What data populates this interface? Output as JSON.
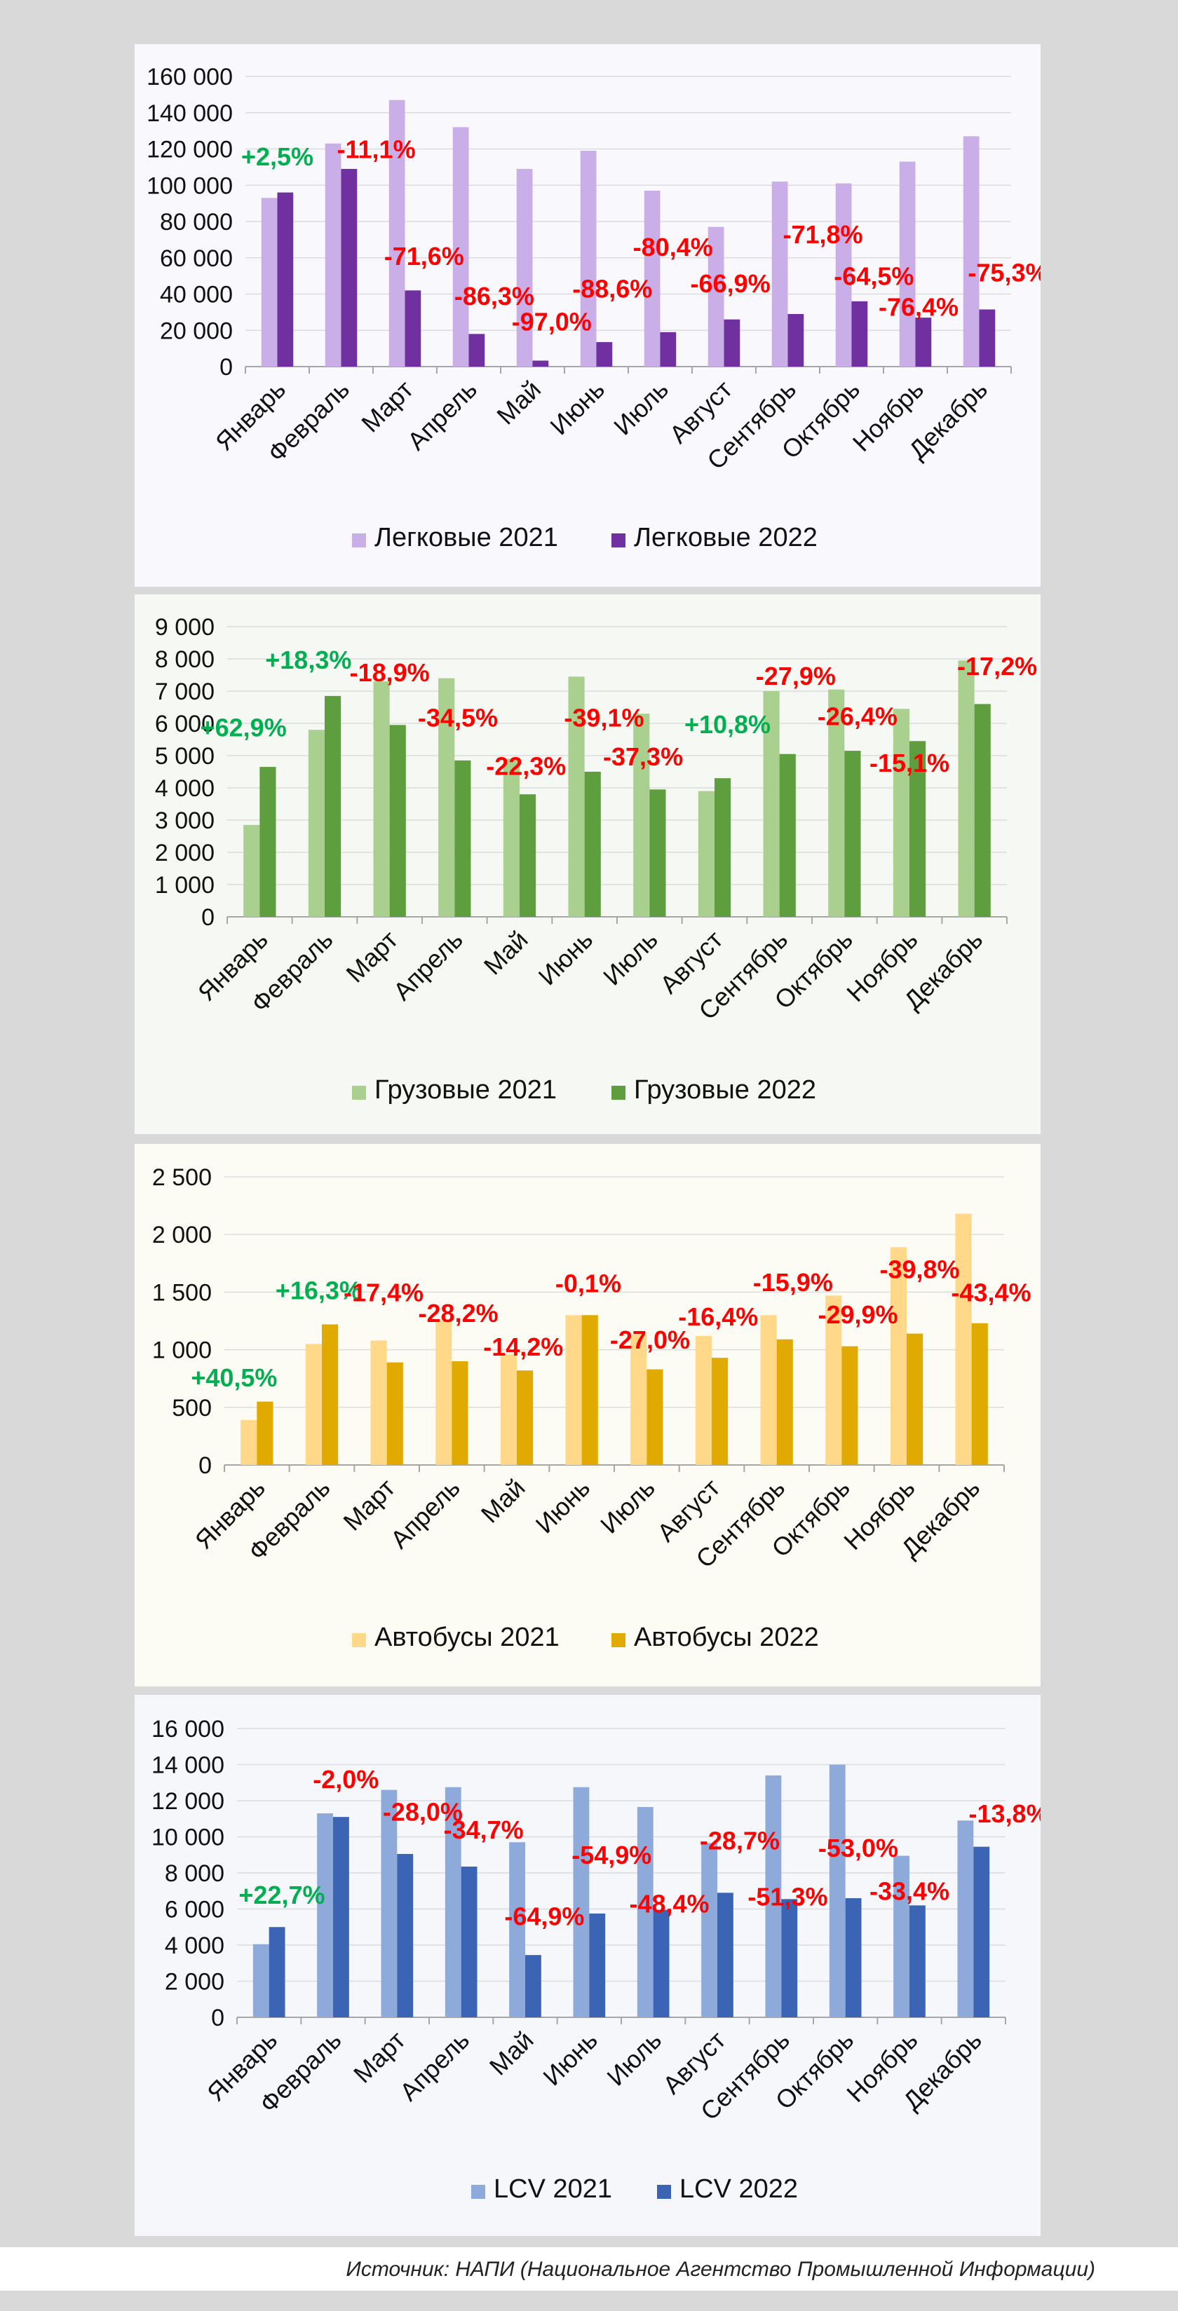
{
  "chart_data": [
    {
      "type": "bar",
      "categories": [
        "Январь",
        "Февраль",
        "Март",
        "Апрель",
        "Май",
        "Июнь",
        "Июль",
        "Август",
        "Сентябрь",
        "Октябрь",
        "Ноябрь",
        "Декабрь"
      ],
      "series": [
        {
          "name": "Легковые 2021",
          "color": "#c9aee8",
          "values": [
            93000,
            123000,
            147000,
            132000,
            109000,
            119000,
            97000,
            77000,
            102000,
            101000,
            113000,
            127000
          ]
        },
        {
          "name": "Легковые 2022",
          "color": "#7030a0",
          "values": [
            96000,
            109000,
            42000,
            18000,
            3300,
            13500,
            19000,
            26000,
            29000,
            36000,
            27000,
            31500
          ]
        }
      ],
      "ylim": [
        0,
        160000
      ],
      "yticks": [
        "0",
        "20 000",
        "40 000",
        "60 000",
        "80 000",
        "100 000",
        "120 000",
        "140 000",
        "160 000"
      ],
      "annotations": [
        {
          "text": "+2,5%",
          "color": "#00b050",
          "category": 0,
          "y": 111000
        },
        {
          "text": "-11,1%",
          "color": "#ff0000",
          "category": 1.55,
          "y": 115000
        },
        {
          "text": "-71,6%",
          "color": "#ff0000",
          "category": 2.3,
          "y": 56000
        },
        {
          "text": "-86,3%",
          "color": "#ff0000",
          "category": 3.4,
          "y": 34000
        },
        {
          "text": "-97,0%",
          "color": "#ff0000",
          "category": 4.3,
          "y": 20000
        },
        {
          "text": "-88,6%",
          "color": "#ff0000",
          "category": 5.25,
          "y": 38000
        },
        {
          "text": "-80,4%",
          "color": "#ff0000",
          "category": 6.2,
          "y": 61000
        },
        {
          "text": "-66,9%",
          "color": "#ff0000",
          "category": 7.1,
          "y": 41000
        },
        {
          "text": "-71,8%",
          "color": "#ff0000",
          "category": 8.55,
          "y": 68000
        },
        {
          "text": "-64,5%",
          "color": "#ff0000",
          "category": 9.35,
          "y": 45000
        },
        {
          "text": "-76,4%",
          "color": "#ff0000",
          "category": 10.05,
          "y": 28000
        },
        {
          "text": "-75,3%",
          "color": "#ff0000",
          "category": 11.45,
          "y": 47000
        }
      ],
      "legend_position": "bottom"
    },
    {
      "type": "bar",
      "categories": [
        "Январь",
        "Февраль",
        "Март",
        "Апрель",
        "Май",
        "Июнь",
        "Июль",
        "Август",
        "Сентябрь",
        "Октябрь",
        "Ноябрь",
        "Декабрь"
      ],
      "series": [
        {
          "name": "Грузовые 2021",
          "color": "#a9d08e",
          "values": [
            2850,
            5800,
            7300,
            7400,
            4900,
            7450,
            6300,
            3900,
            7000,
            7050,
            6450,
            7950
          ]
        },
        {
          "name": "Грузовые 2022",
          "color": "#5e9e3e",
          "values": [
            4650,
            6850,
            5950,
            4850,
            3800,
            4500,
            3950,
            4300,
            5050,
            5150,
            5450,
            6600
          ]
        }
      ],
      "ylim": [
        0,
        9000
      ],
      "yticks": [
        "0",
        "1 000",
        "2 000",
        "3 000",
        "4 000",
        "5 000",
        "6 000",
        "7 000",
        "8 000",
        "9 000"
      ],
      "annotations": [
        {
          "text": "+62,9%",
          "color": "#00b050",
          "category": -0.25,
          "y": 5600
        },
        {
          "text": "+18,3%",
          "color": "#00b050",
          "category": 0.75,
          "y": 7700
        },
        {
          "text": "-18,9%",
          "color": "#ff0000",
          "category": 2.0,
          "y": 7300
        },
        {
          "text": "-34,5%",
          "color": "#ff0000",
          "category": 3.05,
          "y": 5900
        },
        {
          "text": "-22,3%",
          "color": "#ff0000",
          "category": 4.1,
          "y": 4400
        },
        {
          "text": "-39,1%",
          "color": "#ff0000",
          "category": 5.3,
          "y": 5900
        },
        {
          "text": "-37,3%",
          "color": "#ff0000",
          "category": 5.9,
          "y": 4700
        },
        {
          "text": "+10,8%",
          "color": "#00b050",
          "category": 7.2,
          "y": 5700
        },
        {
          "text": "-27,9%",
          "color": "#ff0000",
          "category": 8.25,
          "y": 7200
        },
        {
          "text": "-26,4%",
          "color": "#ff0000",
          "category": 9.2,
          "y": 5950
        },
        {
          "text": "-15,1%",
          "color": "#ff0000",
          "category": 10.0,
          "y": 4500
        },
        {
          "text": "-17,2%",
          "color": "#ff0000",
          "category": 11.35,
          "y": 7500
        }
      ],
      "legend_position": "bottom"
    },
    {
      "type": "bar",
      "categories": [
        "Январь",
        "Февраль",
        "Март",
        "Апрель",
        "Май",
        "Июнь",
        "Июль",
        "Август",
        "Сентябрь",
        "Октябрь",
        "Ноябрь",
        "Декабрь"
      ],
      "series": [
        {
          "name": "Автобусы 2021",
          "color": "#ffd88a",
          "values": [
            390,
            1050,
            1080,
            1250,
            960,
            1300,
            1130,
            1120,
            1300,
            1470,
            1890,
            2180
          ]
        },
        {
          "name": "Автобусы 2022",
          "color": "#e0aa00",
          "values": [
            550,
            1220,
            890,
            900,
            820,
            1300,
            830,
            930,
            1090,
            1030,
            1140,
            1230
          ]
        }
      ],
      "ylim": [
        0,
        2500
      ],
      "yticks": [
        "0",
        "500",
        "1 000",
        "1 500",
        "2 000",
        "2 500"
      ],
      "annotations": [
        {
          "text": "+40,5%",
          "color": "#00b050",
          "category": -0.35,
          "y": 680
        },
        {
          "text": "+16,3%",
          "color": "#00b050",
          "category": 0.95,
          "y": 1440
        },
        {
          "text": "-17,4%",
          "color": "#ff0000",
          "category": 1.95,
          "y": 1420
        },
        {
          "text": "-28,2%",
          "color": "#ff0000",
          "category": 3.1,
          "y": 1240
        },
        {
          "text": "-14,2%",
          "color": "#ff0000",
          "category": 4.1,
          "y": 950
        },
        {
          "text": "-0,1%",
          "color": "#ff0000",
          "category": 5.1,
          "y": 1500
        },
        {
          "text": "-27,0%",
          "color": "#ff0000",
          "category": 6.05,
          "y": 1010
        },
        {
          "text": "-16,4%",
          "color": "#ff0000",
          "category": 7.1,
          "y": 1210
        },
        {
          "text": "-15,9%",
          "color": "#ff0000",
          "category": 8.25,
          "y": 1510
        },
        {
          "text": "-29,9%",
          "color": "#ff0000",
          "category": 9.25,
          "y": 1230
        },
        {
          "text": "-39,8%",
          "color": "#ff0000",
          "category": 10.2,
          "y": 1620
        },
        {
          "text": "-43,4%",
          "color": "#ff0000",
          "category": 11.3,
          "y": 1420
        }
      ],
      "legend_position": "bottom"
    },
    {
      "type": "bar",
      "categories": [
        "Январь",
        "Февраль",
        "Март",
        "Апрель",
        "Май",
        "Июнь",
        "Июль",
        "Август",
        "Сентябрь",
        "Октябрь",
        "Ноябрь",
        "Декабрь"
      ],
      "series": [
        {
          "name": "LCV 2021",
          "color": "#8eaadb",
          "values": [
            4050,
            11300,
            12600,
            12750,
            9700,
            12750,
            11650,
            9650,
            13400,
            14000,
            8950,
            10900
          ]
        },
        {
          "name": "LCV 2022",
          "color": "#3c64b4",
          "values": [
            5000,
            11100,
            9050,
            8350,
            3450,
            5750,
            5950,
            6900,
            6550,
            6600,
            6200,
            9450
          ]
        }
      ],
      "ylim": [
        0,
        16000
      ],
      "yticks": [
        "0",
        "2 000",
        "4 000",
        "6 000",
        "8 000",
        "10 000",
        "12 000",
        "14 000",
        "16 000"
      ],
      "annotations": [
        {
          "text": "+22,7%",
          "color": "#00b050",
          "category": 0.2,
          "y": 6300
        },
        {
          "text": "-2,0%",
          "color": "#ff0000",
          "category": 1.2,
          "y": 12700
        },
        {
          "text": "-28,0%",
          "color": "#ff0000",
          "category": 2.4,
          "y": 10900
        },
        {
          "text": "-34,7%",
          "color": "#ff0000",
          "category": 3.35,
          "y": 9900
        },
        {
          "text": "-64,9%",
          "color": "#ff0000",
          "category": 4.3,
          "y": 5100
        },
        {
          "text": "-54,9%",
          "color": "#ff0000",
          "category": 5.35,
          "y": 8500
        },
        {
          "text": "-48,4%",
          "color": "#ff0000",
          "category": 6.25,
          "y": 5800
        },
        {
          "text": "-28,7%",
          "color": "#ff0000",
          "category": 7.35,
          "y": 9300
        },
        {
          "text": "-51,3%",
          "color": "#ff0000",
          "category": 8.1,
          "y": 6200
        },
        {
          "text": "-53,0%",
          "color": "#ff0000",
          "category": 9.2,
          "y": 8900
        },
        {
          "text": "-33,4%",
          "color": "#ff0000",
          "category": 10.0,
          "y": 6500
        },
        {
          "text": "-13,8%",
          "color": "#ff0000",
          "category": 11.55,
          "y": 10800
        }
      ],
      "legend_position": "bottom"
    }
  ],
  "source": "Источник: НАПИ (Национальное Агентство Промышленной Информации)"
}
